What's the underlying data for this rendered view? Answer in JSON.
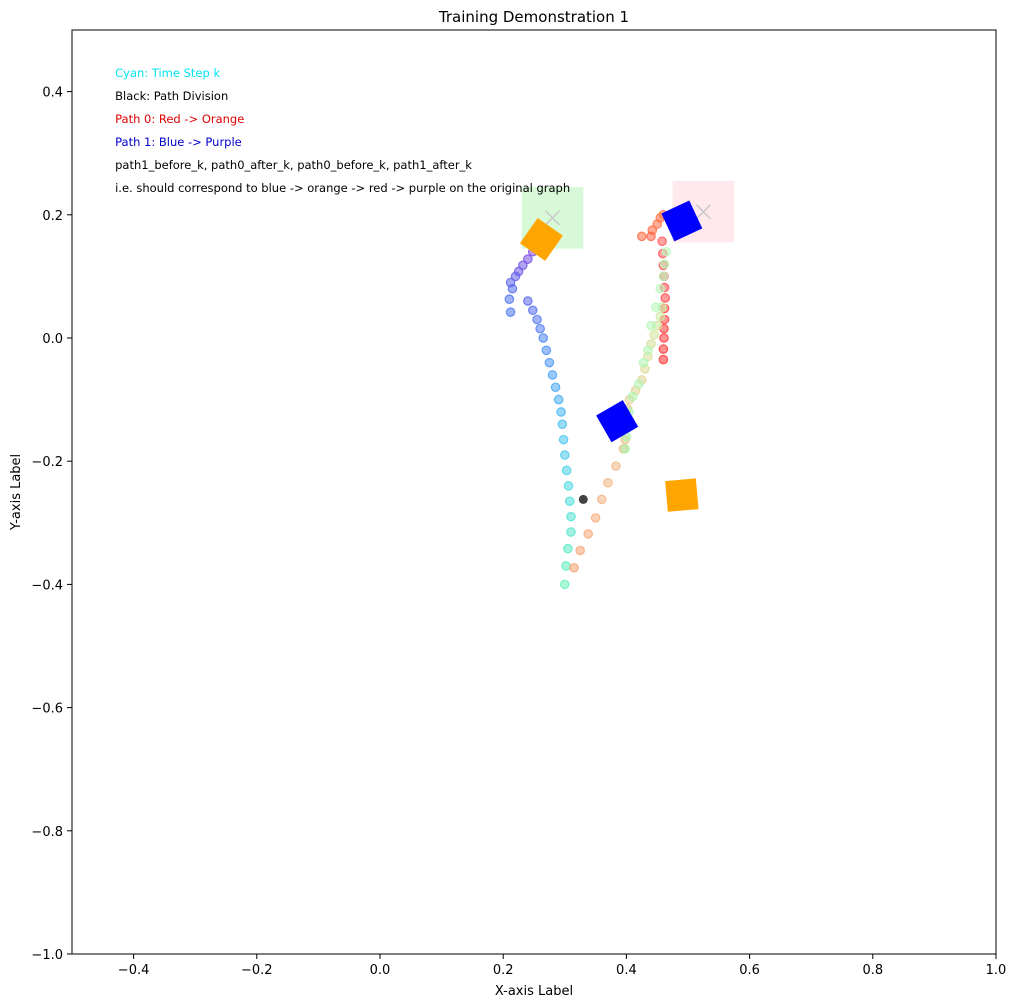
{
  "chart_data": {
    "type": "scatter",
    "title": "Training Demonstration 1",
    "xlabel": "X-axis Label",
    "ylabel": "Y-axis Label",
    "xlim": [
      -0.5,
      1.0
    ],
    "ylim": [
      -1.0,
      0.5
    ],
    "xticks": [
      -0.4,
      -0.2,
      0.0,
      0.2,
      0.4,
      0.6,
      0.8,
      1.0
    ],
    "xtick_labels": [
      "−0.4",
      "−0.2",
      "0.0",
      "0.2",
      "0.4",
      "0.6",
      "0.8",
      "1.0"
    ],
    "yticks": [
      -1.0,
      -0.8,
      -0.6,
      -0.4,
      -0.2,
      0.0,
      0.2,
      0.4
    ],
    "ytick_labels": [
      "−1.0",
      "−0.8",
      "−0.6",
      "−0.4",
      "−0.2",
      "0.0",
      "0.2",
      "0.4"
    ],
    "grid": false,
    "annotations": [
      {
        "text": "Cyan: Time Step k",
        "color": "#00e5ee"
      },
      {
        "text": "Black: Path Division",
        "color": "#000000"
      },
      {
        "text": "Path 0: Red -> Orange",
        "color": "#e00000"
      },
      {
        "text": "Path 1: Blue -> Purple",
        "color": "#0000cc"
      },
      {
        "text": "path1_before_k, path0_after_k, path0_before_k, path1_after_k",
        "color": "#000000"
      },
      {
        "text": "i.e. should correspond to blue -> orange -> red -> purple on the original graph",
        "color": "#000000"
      }
    ],
    "target_regions": [
      {
        "x": [
          0.23,
          0.33
        ],
        "y": [
          0.145,
          0.245
        ],
        "color": "#90ee90",
        "marker_x": 0.28,
        "marker_y": 0.195
      },
      {
        "x": [
          0.475,
          0.575
        ],
        "y": [
          0.155,
          0.255
        ],
        "color": "#ffc0cb",
        "marker_x": 0.525,
        "marker_y": 0.205
      }
    ],
    "objects": [
      {
        "x": 0.262,
        "y": 0.16,
        "size": 0.05,
        "angle": 35,
        "color": "#ffa500"
      },
      {
        "x": 0.49,
        "y": -0.255,
        "size": 0.05,
        "angle": -5,
        "color": "#ffa500"
      },
      {
        "x": 0.49,
        "y": 0.19,
        "size": 0.05,
        "angle": -25,
        "color": "#0000ff"
      },
      {
        "x": 0.385,
        "y": -0.135,
        "size": 0.05,
        "angle": -30,
        "color": "#0000ff"
      }
    ],
    "division_point": {
      "x": 0.33,
      "y": -0.262
    },
    "series": [
      {
        "points": [
          [
            0.3,
            -0.4
          ],
          [
            0.302,
            -0.37
          ],
          [
            0.305,
            -0.342
          ],
          [
            0.31,
            -0.315
          ],
          [
            0.31,
            -0.29
          ],
          [
            0.308,
            -0.265
          ],
          [
            0.306,
            -0.24
          ],
          [
            0.303,
            -0.215
          ],
          [
            0.3,
            -0.19
          ],
          [
            0.298,
            -0.165
          ],
          [
            0.296,
            -0.14
          ],
          [
            0.294,
            -0.12
          ],
          [
            0.29,
            -0.1
          ],
          [
            0.285,
            -0.08
          ],
          [
            0.28,
            -0.06
          ],
          [
            0.275,
            -0.04
          ],
          [
            0.27,
            -0.02
          ],
          [
            0.265,
            0.0
          ],
          [
            0.26,
            0.015
          ],
          [
            0.255,
            0.03
          ],
          [
            0.248,
            0.045
          ],
          [
            0.24,
            0.06
          ],
          [
            0.212,
            0.042
          ],
          [
            0.21,
            0.063
          ],
          [
            0.215,
            0.08
          ],
          [
            0.212,
            0.09
          ],
          [
            0.22,
            0.1
          ],
          [
            0.225,
            0.108
          ],
          [
            0.232,
            0.118
          ],
          [
            0.24,
            0.128
          ],
          [
            0.248,
            0.14
          ]
        ],
        "colors": [
          "#64f0b4",
          "#5eeebc",
          "#5aeac4",
          "#55e6cc",
          "#50e0d4",
          "#4cdcdc",
          "#4ad8e2",
          "#48d2e6",
          "#47cbea",
          "#46c4ee",
          "#45bdf0",
          "#44b6f2",
          "#44aef4",
          "#45a6f5",
          "#469ef6",
          "#4896f6",
          "#4a8ef5",
          "#4c86f4",
          "#4f7ef2",
          "#5276f0",
          "#556eee",
          "#5866ec",
          "#4a78f2",
          "#4e72f0",
          "#5a6cee",
          "#5e66ec",
          "#6460ea",
          "#6a5ae8",
          "#7054e6",
          "#764ee4",
          "#7c48e2"
        ]
      },
      {
        "points": [
          [
            0.46,
            -0.035
          ],
          [
            0.46,
            -0.018
          ],
          [
            0.461,
            0.0
          ],
          [
            0.461,
            0.015
          ],
          [
            0.462,
            0.03
          ],
          [
            0.462,
            0.048
          ],
          [
            0.463,
            0.065
          ],
          [
            0.462,
            0.082
          ],
          [
            0.461,
            0.1
          ],
          [
            0.46,
            0.118
          ],
          [
            0.459,
            0.137
          ],
          [
            0.458,
            0.157
          ],
          [
            0.44,
            0.165
          ],
          [
            0.425,
            0.165
          ],
          [
            0.442,
            0.175
          ],
          [
            0.45,
            0.185
          ],
          [
            0.455,
            0.195
          ],
          [
            0.46,
            0.2
          ]
        ],
        "colors": [
          "#ff3030",
          "#ff3434",
          "#ff3838",
          "#ff3c3c",
          "#ff4040",
          "#ff4444",
          "#ff4848",
          "#ff4c4c",
          "#ff5050",
          "#ff5252",
          "#ff5454",
          "#ff5858",
          "#ff6048",
          "#ff6840",
          "#ff6a40",
          "#ff6e42",
          "#ff7244",
          "#ff7646"
        ]
      },
      {
        "points": [
          [
            0.315,
            -0.373
          ],
          [
            0.325,
            -0.345
          ],
          [
            0.338,
            -0.318
          ],
          [
            0.35,
            -0.292
          ],
          [
            0.36,
            -0.262
          ],
          [
            0.37,
            -0.235
          ],
          [
            0.383,
            -0.208
          ],
          [
            0.395,
            -0.18
          ],
          [
            0.398,
            -0.165
          ],
          [
            0.4,
            -0.14
          ],
          [
            0.402,
            -0.115
          ],
          [
            0.405,
            -0.1
          ],
          [
            0.415,
            -0.085
          ],
          [
            0.425,
            -0.068
          ],
          [
            0.43,
            -0.05
          ],
          [
            0.435,
            -0.03
          ],
          [
            0.44,
            -0.01
          ],
          [
            0.445,
            0.005
          ],
          [
            0.45,
            0.02
          ],
          [
            0.455,
            0.035
          ],
          [
            0.458,
            0.05
          ]
        ],
        "colors": [
          "#f8a070",
          "#f8a474",
          "#f6a878",
          "#f4ac7c",
          "#f2b080",
          "#f0b482",
          "#eeb884",
          "#ecbc86",
          "#eac088",
          "#e8c48a",
          "#e6c88c",
          "#e4cc8e",
          "#e2d090",
          "#e0d492",
          "#ded894",
          "#dcdc96",
          "#d8e098",
          "#d4e49a",
          "#d0e89c",
          "#cceca0",
          "#c8f0a4"
        ]
      },
      {
        "points": [
          [
            0.398,
            -0.18
          ],
          [
            0.4,
            -0.16
          ],
          [
            0.402,
            -0.14
          ],
          [
            0.404,
            -0.12
          ],
          [
            0.41,
            -0.095
          ],
          [
            0.42,
            -0.075
          ],
          [
            0.428,
            -0.04
          ],
          [
            0.435,
            -0.02
          ],
          [
            0.44,
            0.02
          ],
          [
            0.448,
            0.05
          ],
          [
            0.455,
            0.08
          ],
          [
            0.46,
            0.1
          ],
          [
            0.462,
            0.12
          ],
          [
            0.465,
            0.14
          ]
        ],
        "colors": [
          "#a8f0a8",
          "#a8f2aa",
          "#aaf2ac",
          "#acf4ae",
          "#aef4b0",
          "#b0f4b0",
          "#b0f6b2",
          "#b2f6b4",
          "#b2f6b4",
          "#b4f8b6",
          "#b4f8b6",
          "#b6f8b8",
          "#b6f8b8",
          "#b8fabA"
        ]
      }
    ]
  }
}
